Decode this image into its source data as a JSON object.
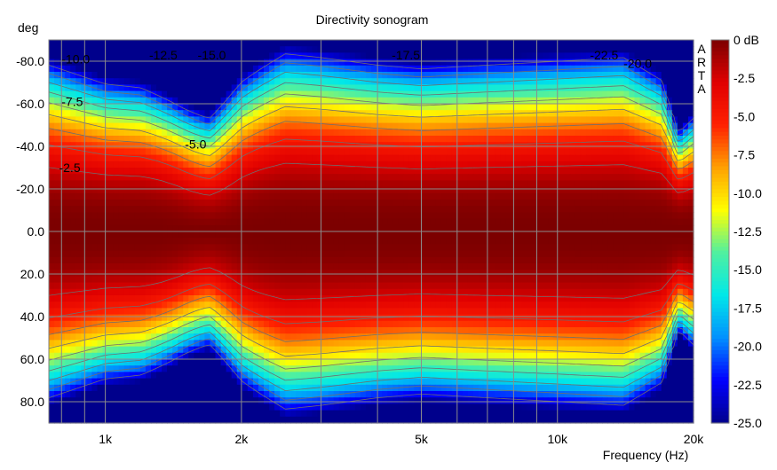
{
  "chart_data": {
    "type": "heatmap",
    "title": "Directivity sonogram",
    "xlabel": "Frequency (Hz)",
    "ylabel": "deg",
    "x_scale": "log",
    "xlim": [
      750,
      20000
    ],
    "ylim": [
      -90,
      90
    ],
    "x_ticks": [
      {
        "value": 1000,
        "label": "1k"
      },
      {
        "value": 2000,
        "label": "2k"
      },
      {
        "value": 5000,
        "label": "5k"
      },
      {
        "value": 10000,
        "label": "10k"
      },
      {
        "value": 20000,
        "label": "20k"
      }
    ],
    "y_ticks": [
      {
        "value": -80,
        "label": "-80.0"
      },
      {
        "value": -60,
        "label": "-60.0"
      },
      {
        "value": -40,
        "label": "-40.0"
      },
      {
        "value": -20,
        "label": "-20.0"
      },
      {
        "value": 0,
        "label": "0.0"
      },
      {
        "value": 20,
        "label": "20.0"
      },
      {
        "value": 40,
        "label": "40.0"
      },
      {
        "value": 60,
        "label": "60.0"
      },
      {
        "value": 80,
        "label": "80.0"
      }
    ],
    "colorbar": {
      "unit": "dB",
      "range": [
        -25,
        0
      ],
      "ticks": [
        {
          "value": 0,
          "label": "0 dB"
        },
        {
          "value": -2.5,
          "label": "-2.5"
        },
        {
          "value": -5,
          "label": "-5.0"
        },
        {
          "value": -7.5,
          "label": "-7.5"
        },
        {
          "value": -10,
          "label": "-10.0"
        },
        {
          "value": -12.5,
          "label": "-12.5"
        },
        {
          "value": -15,
          "label": "-15.0"
        },
        {
          "value": -17.5,
          "label": "-17.5"
        },
        {
          "value": -20,
          "label": "-20.0"
        },
        {
          "value": -22.5,
          "label": "-22.5"
        },
        {
          "value": -25,
          "label": "-25.0"
        }
      ],
      "colors": [
        "#00008c",
        "#0000ff",
        "#0090ff",
        "#00e8e8",
        "#50f0a0",
        "#ffff00",
        "#ffa000",
        "#ff2000",
        "#e00000",
        "#7c0000"
      ]
    },
    "contour_levels": [
      -2.5,
      -5,
      -7.5,
      -10,
      -12.5,
      -15,
      -17.5,
      -20,
      -22.5
    ],
    "contour_labels": [
      {
        "text": "-10.0",
        "freq": 800,
        "deg": -81
      },
      {
        "text": "-12.5",
        "freq": 1250,
        "deg": -83
      },
      {
        "text": "-15.0",
        "freq": 1600,
        "deg": -83
      },
      {
        "text": "-17.5",
        "freq": 4300,
        "deg": -83
      },
      {
        "text": "-22.5",
        "freq": 11800,
        "deg": -83
      },
      {
        "text": "-20.0",
        "freq": 14000,
        "deg": -79
      },
      {
        "text": "-7.5",
        "freq": 800,
        "deg": -61
      },
      {
        "text": "-5.0",
        "freq": 1500,
        "deg": -41
      },
      {
        "text": "-2.5",
        "freq": 790,
        "deg": -30
      }
    ],
    "grid": true,
    "watermark": "ARTA",
    "model": {
      "description_free": true,
      "freqs": [
        750,
        1000,
        1200,
        1500,
        1700,
        2000,
        2500,
        3000,
        4000,
        5000,
        7000,
        10000,
        14000,
        17000,
        18500,
        20000
      ],
      "width_deg": [
        44,
        39,
        38,
        33,
        31,
        40,
        47,
        46,
        44,
        43,
        44,
        45,
        46,
        40,
        26,
        30
      ]
    }
  },
  "watermark_letters": [
    "A",
    "R",
    "T",
    "A"
  ]
}
